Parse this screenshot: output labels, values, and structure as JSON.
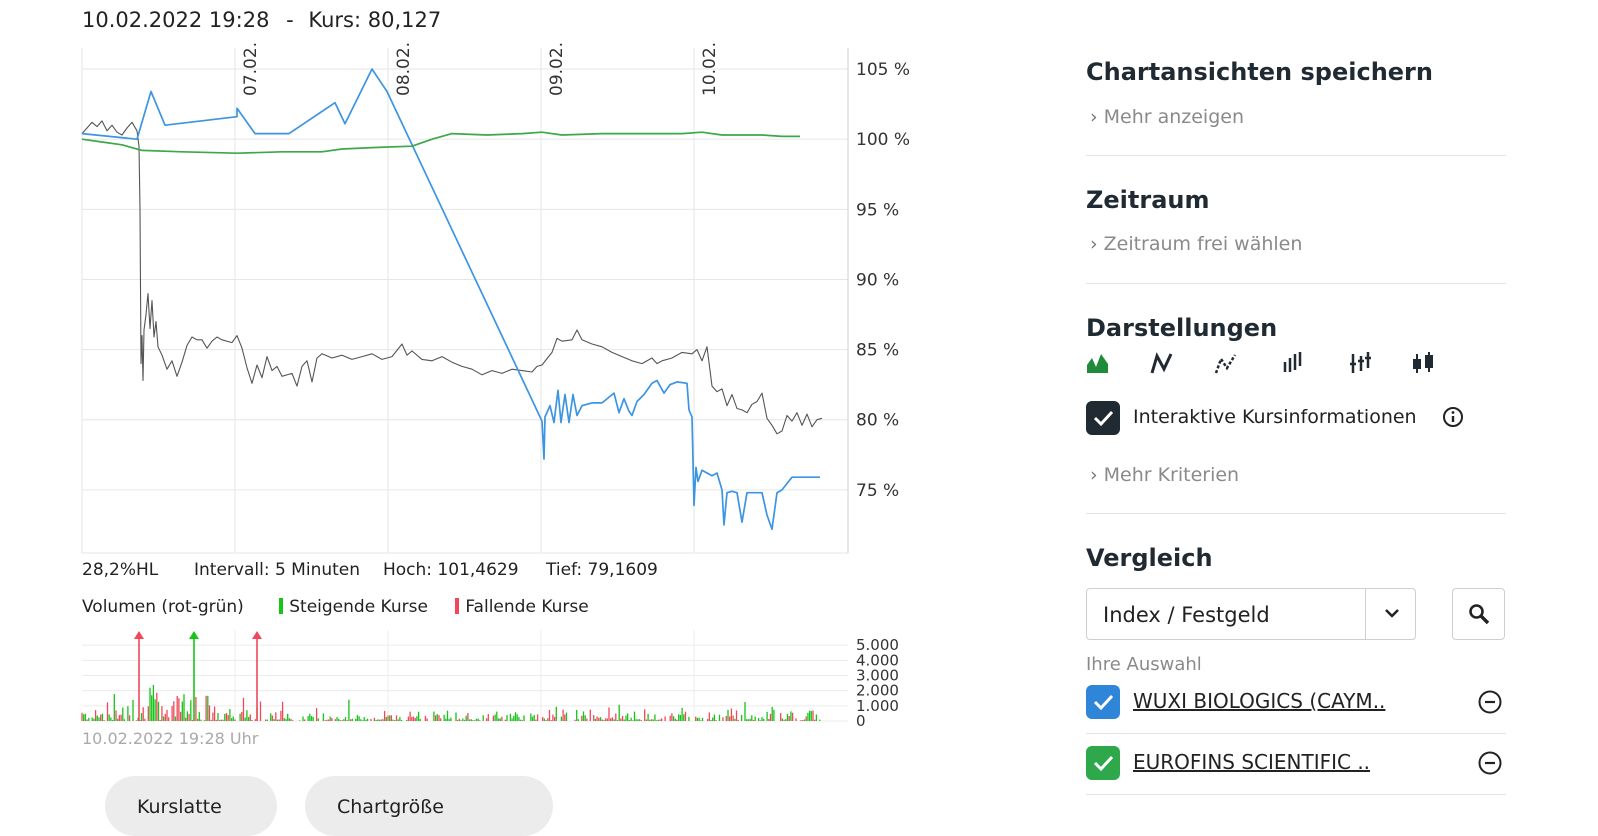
{
  "header": {
    "date": "10.02.2022 19:28",
    "sep": "-",
    "kurs": "Kurs: 80,127"
  },
  "chart_data": [
    {
      "type": "line",
      "y_unit": "%",
      "ylim": [
        70.5,
        106.5
      ],
      "y_ticks": [
        "105 %",
        "100 %",
        "95 %",
        "90 %",
        "85 %",
        "80 %",
        "75 %"
      ],
      "y_tick_values": [
        105,
        100,
        95,
        90,
        85,
        80,
        75
      ],
      "x_date_labels": [
        "07.02.",
        "08.02.",
        "09.02.",
        "10.02."
      ],
      "grid": true,
      "series": [
        {
          "color": "#555555",
          "points": [
            [
              0,
              100.4
            ],
            [
              5,
              100.8
            ],
            [
              10,
              101.2
            ],
            [
              15,
              100.9
            ],
            [
              20,
              101.3
            ],
            [
              25,
              100.6
            ],
            [
              30,
              101.0
            ],
            [
              35,
              100.5
            ],
            [
              40,
              100.3
            ],
            [
              45,
              100.8
            ],
            [
              50,
              101.2
            ],
            [
              55,
              100.6
            ],
            [
              57,
              99.5
            ],
            [
              58,
              95
            ],
            [
              59,
              84
            ],
            [
              60,
              86
            ],
            [
              61,
              82.8
            ],
            [
              62,
              86.4
            ],
            [
              64,
              87.5
            ],
            [
              66,
              89.0
            ],
            [
              68,
              86.5
            ],
            [
              70,
              88.5
            ],
            [
              72,
              85.9
            ],
            [
              74,
              87.0
            ],
            [
              76,
              85.2
            ],
            [
              80,
              84.6
            ],
            [
              85,
              83.6
            ],
            [
              90,
              84.2
            ],
            [
              95,
              83.1
            ],
            [
              100,
              84.1
            ],
            [
              105,
              85.3
            ],
            [
              110,
              85.9
            ],
            [
              115,
              85.7
            ],
            [
              120,
              85.7
            ],
            [
              125,
              85.1
            ],
            [
              130,
              85.6
            ],
            [
              135,
              85.9
            ],
            [
              140,
              85.7
            ],
            [
              150,
              85.5
            ],
            [
              155,
              86.0
            ],
            [
              160,
              85.1
            ],
            [
              165,
              83.7
            ],
            [
              170,
              82.6
            ],
            [
              175,
              83.9
            ],
            [
              180,
              83.0
            ],
            [
              185,
              84.5
            ],
            [
              190,
              83.5
            ],
            [
              195,
              83.8
            ],
            [
              200,
              83.1
            ],
            [
              210,
              83.3
            ],
            [
              215,
              82.4
            ],
            [
              220,
              83.8
            ],
            [
              225,
              84.2
            ],
            [
              230,
              82.7
            ],
            [
              235,
              84.4
            ],
            [
              240,
              84.7
            ],
            [
              250,
              84.4
            ],
            [
              260,
              84.6
            ],
            [
              270,
              84.3
            ],
            [
              280,
              84.5
            ],
            [
              290,
              84.7
            ],
            [
              300,
              84.3
            ],
            [
              310,
              84.5
            ],
            [
              320,
              85.4
            ],
            [
              325,
              84.6
            ],
            [
              330,
              84.9
            ],
            [
              340,
              84.3
            ],
            [
              350,
              84.2
            ],
            [
              360,
              84.5
            ],
            [
              370,
              84.1
            ],
            [
              380,
              83.8
            ],
            [
              390,
              83.6
            ],
            [
              400,
              83.2
            ],
            [
              410,
              83.5
            ],
            [
              420,
              83.3
            ],
            [
              430,
              83.6
            ],
            [
              440,
              83.5
            ],
            [
              450,
              83.4
            ],
            [
              455,
              83.8
            ],
            [
              460,
              83.9
            ],
            [
              470,
              84.8
            ],
            [
              475,
              85.8
            ],
            [
              480,
              85.6
            ],
            [
              490,
              85.7
            ],
            [
              495,
              86.4
            ],
            [
              500,
              85.7
            ],
            [
              510,
              85.4
            ],
            [
              520,
              85.2
            ],
            [
              530,
              84.8
            ],
            [
              540,
              84.5
            ],
            [
              550,
              84.2
            ],
            [
              560,
              84.0
            ],
            [
              570,
              84.4
            ],
            [
              575,
              84.0
            ],
            [
              580,
              84.2
            ],
            [
              590,
              84.4
            ],
            [
              600,
              84.8
            ],
            [
              610,
              84.7
            ],
            [
              615,
              85.0
            ],
            [
              620,
              84.2
            ],
            [
              625,
              85.2
            ],
            [
              630,
              82.4
            ],
            [
              635,
              82.0
            ],
            [
              640,
              82.2
            ],
            [
              645,
              81.0
            ],
            [
              650,
              81.8
            ],
            [
              655,
              80.8
            ],
            [
              660,
              80.7
            ],
            [
              665,
              80.5
            ],
            [
              670,
              81.1
            ],
            [
              675,
              81.3
            ],
            [
              680,
              81.9
            ],
            [
              685,
              80.1
            ],
            [
              690,
              79.6
            ],
            [
              695,
              79.0
            ],
            [
              700,
              79.2
            ],
            [
              705,
              80.3
            ],
            [
              710,
              79.9
            ],
            [
              715,
              80.5
            ],
            [
              720,
              79.6
            ],
            [
              725,
              80.4
            ],
            [
              730,
              79.5
            ],
            [
              735,
              80.0
            ],
            [
              740,
              80.1
            ]
          ]
        },
        {
          "color": "#3d94e3",
          "points": [
            [
              0,
              100.4
            ],
            [
              55,
              100.0
            ],
            [
              69,
              103.4
            ],
            [
              83,
              101.0
            ],
            [
              155,
              101.6
            ],
            [
              155,
              102.2
            ],
            [
              173,
              100.4
            ],
            [
              207,
              100.4
            ],
            [
              253,
              102.6
            ],
            [
              263,
              101.1
            ],
            [
              290,
              105.0
            ],
            [
              305,
              103.4
            ],
            [
              460,
              79.9
            ],
            [
              462,
              77.2
            ],
            [
              463,
              80.2
            ],
            [
              468,
              81.0
            ],
            [
              472,
              79.8
            ],
            [
              476,
              82.1
            ],
            [
              479,
              79.8
            ],
            [
              483,
              81.8
            ],
            [
              487,
              79.8
            ],
            [
              491,
              81.8
            ],
            [
              495,
              80.3
            ],
            [
              500,
              81.0
            ],
            [
              510,
              81.2
            ],
            [
              520,
              81.2
            ],
            [
              532,
              81.9
            ],
            [
              537,
              80.5
            ],
            [
              542,
              81.5
            ],
            [
              547,
              80.6
            ],
            [
              550,
              80.3
            ],
            [
              555,
              81.3
            ],
            [
              562,
              81.8
            ],
            [
              570,
              82.6
            ],
            [
              575,
              82.8
            ],
            [
              582,
              81.9
            ],
            [
              588,
              82.5
            ],
            [
              595,
              82.7
            ],
            [
              605,
              82.6
            ],
            [
              607,
              80.7
            ],
            [
              610,
              80.2
            ],
            [
              612,
              73.9
            ],
            [
              614,
              76.6
            ],
            [
              616,
              75.6
            ],
            [
              620,
              76.4
            ],
            [
              625,
              76.2
            ],
            [
              630,
              76.0
            ],
            [
              635,
              76.2
            ],
            [
              640,
              75.0
            ],
            [
              642,
              72.5
            ],
            [
              645,
              74.8
            ],
            [
              650,
              74.9
            ],
            [
              655,
              74.8
            ],
            [
              660,
              72.7
            ],
            [
              665,
              74.8
            ],
            [
              680,
              74.8
            ],
            [
              685,
              73.2
            ],
            [
              690,
              72.2
            ],
            [
              695,
              74.8
            ],
            [
              700,
              75.0
            ],
            [
              710,
              75.9
            ],
            [
              720,
              75.9
            ],
            [
              738,
              75.9
            ]
          ]
        },
        {
          "color": "#3ca84a",
          "points": [
            [
              0,
              100.0
            ],
            [
              20,
              99.8
            ],
            [
              40,
              99.6
            ],
            [
              60,
              99.2
            ],
            [
              100,
              99.1
            ],
            [
              155,
              99.0
            ],
            [
              200,
              99.1
            ],
            [
              240,
              99.1
            ],
            [
              260,
              99.3
            ],
            [
              290,
              99.4
            ],
            [
              330,
              99.5
            ],
            [
              350,
              100.0
            ],
            [
              370,
              100.4
            ],
            [
              405,
              100.3
            ],
            [
              440,
              100.4
            ],
            [
              460,
              100.5
            ],
            [
              480,
              100.3
            ],
            [
              520,
              100.4
            ],
            [
              560,
              100.4
            ],
            [
              600,
              100.4
            ],
            [
              620,
              100.5
            ],
            [
              640,
              100.3
            ],
            [
              680,
              100.3
            ],
            [
              700,
              100.2
            ],
            [
              718,
              100.2
            ]
          ]
        }
      ]
    },
    {
      "type": "bar",
      "title": "Volumen (rot-grün)",
      "y_ticks": [
        "5.000",
        "4.000",
        "3.000",
        "2.000",
        "1.000",
        "0"
      ],
      "y_tick_values": [
        5000,
        4000,
        3000,
        2000,
        1000,
        0
      ],
      "ylim": [
        0,
        6000
      ],
      "legend": [
        {
          "label": "Steigende Kurse",
          "color": "#17c417"
        },
        {
          "label": "Fallende Kurse",
          "color": "#f0475a"
        }
      ],
      "spikes": [
        {
          "x": 57,
          "value": 5800,
          "color": "#f0475a"
        },
        {
          "x": 112,
          "value": 5800,
          "color": "#17c417"
        },
        {
          "x": 175,
          "value": 5800,
          "color": "#f0475a"
        }
      ]
    }
  ],
  "stats": {
    "hl": "28,2%HL",
    "intervall": "Intervall: 5 Minuten",
    "hoch": "Hoch: 101,4629",
    "tief": "Tief: 79,1609"
  },
  "vol_date": "10.02.2022 19:28 Uhr",
  "buttons": {
    "kurslatten": "Kurslatte",
    "chart_groesse": "Chartgröße"
  },
  "sidebar": {
    "save_title": "Chartansichten speichern",
    "save_link": "Mehr anzeigen",
    "zeitraum_title": "Zeitraum",
    "zeitraum_link": "Zeitraum frei wählen",
    "darst_title": "Darstellungen",
    "view_icons": [
      "mountain-chart-icon",
      "line-chart-icon",
      "dotted-line-chart-icon",
      "ohlc-bars-icon",
      "hlc-bars-icon",
      "candlestick-icon"
    ],
    "interaktiv_label": "Interaktive Kursinformationen",
    "mehr_kriterien": "Mehr Kriterien",
    "vergleich_title": "Vergleich",
    "select_value": "Index / Festgeld",
    "auswahl_label": "Ihre Auswahl",
    "comparisons": [
      {
        "label": "WUXI BIOLOGICS (CAYM..",
        "color": "#2f86d9"
      },
      {
        "label": "EUROFINS SCIENTIFIC ..",
        "color": "#2ea84a"
      }
    ]
  }
}
